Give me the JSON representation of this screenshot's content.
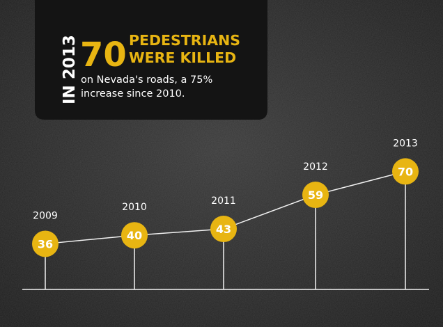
{
  "colors": {
    "background": "#2a2a2a",
    "panel": "#141414",
    "accent": "#e8b512",
    "line": "#f2f2f2",
    "text": "#ffffff"
  },
  "headline": {
    "vertical_text": "IN 2013",
    "big_number": "70",
    "line1": "PEDESTRIANS",
    "line2": "WERE KILLED",
    "body_line1": "on Nevada's roads, a 75%",
    "body_line2": "increase since 2010."
  },
  "chart_data": {
    "type": "line",
    "title": "",
    "xlabel": "",
    "ylabel": "",
    "x": [
      "2009",
      "2010",
      "2011",
      "2012",
      "2013"
    ],
    "series": [
      {
        "values": [
          36,
          40,
          43,
          59,
          70
        ]
      }
    ],
    "data_labels": [
      "36",
      "40",
      "43",
      "59",
      "70"
    ],
    "grid": false,
    "legend": "none"
  }
}
